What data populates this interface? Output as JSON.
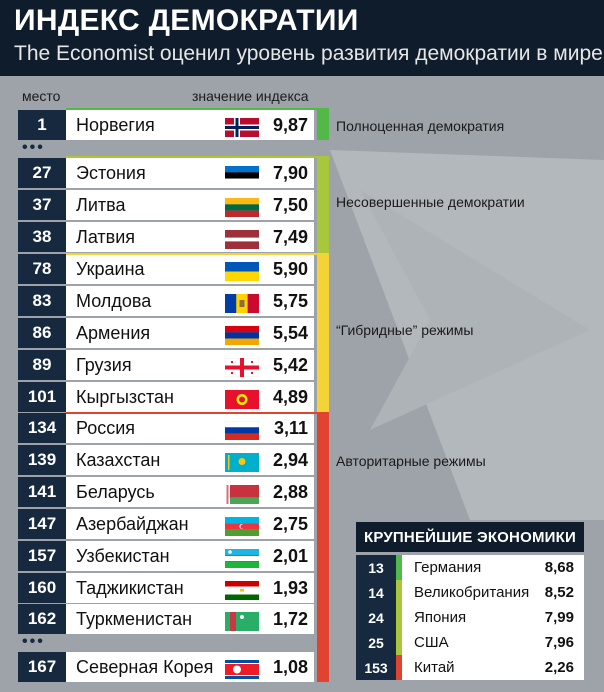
{
  "title": "ИНДЕКС ДЕМОКРАТИИ",
  "subtitle": "The Economist оценил уровень развития демократии в мире",
  "headers": {
    "rank": "место",
    "value": "значение индекса"
  },
  "ellipsis": "•••",
  "colors": {
    "full": "#52b948",
    "flawed": "#a9c73d",
    "hybrid": "#f3d335",
    "authoritarian": "#e0432f",
    "navy": "#16293f"
  },
  "categories": [
    {
      "label": "Полноценная демократия",
      "color": "#52b948"
    },
    {
      "label": "Несовершенные демократии",
      "color": "#a9c73d"
    },
    {
      "label": "“Гибридные” режимы",
      "color": "#f3d335"
    },
    {
      "label": "Авторитарные режимы",
      "color": "#e0432f"
    }
  ],
  "chart_data": {
    "type": "table",
    "title": "ИНДЕКС ДЕМОКРАТИИ",
    "subtitle": "The Economist оценил уровень развития демократии в мире",
    "columns": [
      "место",
      "значение индекса"
    ],
    "rows": [
      {
        "rank": "1",
        "country": "Норвегия",
        "value": "9,87",
        "flag": "norway-flag"
      },
      {
        "rank": "27",
        "country": "Эстония",
        "value": "7,90",
        "flag": "estonia-flag"
      },
      {
        "rank": "37",
        "country": "Литва",
        "value": "7,50",
        "flag": "lithuania-flag"
      },
      {
        "rank": "38",
        "country": "Латвия",
        "value": "7,49",
        "flag": "latvia-flag"
      },
      {
        "rank": "78",
        "country": "Украина",
        "value": "5,90",
        "flag": "ukraine-flag"
      },
      {
        "rank": "83",
        "country": "Молдова",
        "value": "5,75",
        "flag": "moldova-flag"
      },
      {
        "rank": "86",
        "country": "Армения",
        "value": "5,54",
        "flag": "armenia-flag"
      },
      {
        "rank": "89",
        "country": "Грузия",
        "value": "5,42",
        "flag": "georgia-flag"
      },
      {
        "rank": "101",
        "country": "Кыргызстан",
        "value": "4,89",
        "flag": "kyrgyzstan-flag"
      },
      {
        "rank": "134",
        "country": "Россия",
        "value": "3,11",
        "flag": "russia-flag"
      },
      {
        "rank": "139",
        "country": "Казахстан",
        "value": "2,94",
        "flag": "kazakhstan-flag"
      },
      {
        "rank": "141",
        "country": "Беларусь",
        "value": "2,88",
        "flag": "belarus-flag"
      },
      {
        "rank": "147",
        "country": "Азербайджан",
        "value": "2,75",
        "flag": "azerbaijan-flag"
      },
      {
        "rank": "157",
        "country": "Узбекистан",
        "value": "2,01",
        "flag": "uzbekistan-flag"
      },
      {
        "rank": "160",
        "country": "Таджикистан",
        "value": "1,93",
        "flag": "tajikistan-flag"
      },
      {
        "rank": "162",
        "country": "Туркменистан",
        "value": "1,72",
        "flag": "turkmenistan-flag"
      },
      {
        "rank": "167",
        "country": "Северная Корея",
        "value": "1,08",
        "flag": "north-korea-flag"
      }
    ]
  },
  "economies": {
    "title": "КРУПНЕЙШИЕ ЭКОНОМИКИ",
    "rows": [
      {
        "rank": "13",
        "country": "Германия",
        "value": "8,68",
        "color": "#52b948"
      },
      {
        "rank": "14",
        "country": "Великобритания",
        "value": "8,52",
        "color": "#a9c73d"
      },
      {
        "rank": "24",
        "country": "Япония",
        "value": "7,99",
        "color": "#a9c73d"
      },
      {
        "rank": "25",
        "country": "США",
        "value": "7,96",
        "color": "#a9c73d"
      },
      {
        "rank": "153",
        "country": "Китай",
        "value": "2,26",
        "color": "#e0432f"
      }
    ]
  }
}
